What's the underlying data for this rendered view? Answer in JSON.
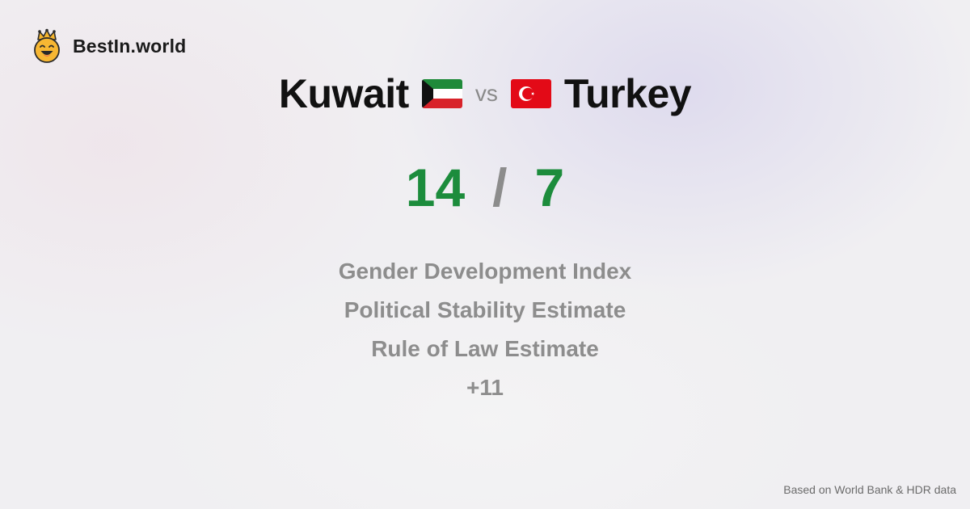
{
  "brand": {
    "name": "BestIn.world",
    "icon": "crown-smiley-icon"
  },
  "comparison": {
    "left_country": "Kuwait",
    "left_flag": "kuwait-flag-icon",
    "vs_label": "vs",
    "right_country": "Turkey",
    "right_flag": "turkey-flag-icon"
  },
  "score": {
    "left": "14",
    "separator": "/",
    "right": "7"
  },
  "metrics": [
    "Gender Development Index",
    "Political Stability Estimate",
    "Rule of Law Estimate",
    "+11"
  ],
  "footer": {
    "source_note": "Based on World Bank & HDR data"
  },
  "colors": {
    "score_green": "#1c8c3c",
    "muted_gray": "#8d8d8d",
    "brand_yellow": "#f5b52e"
  }
}
